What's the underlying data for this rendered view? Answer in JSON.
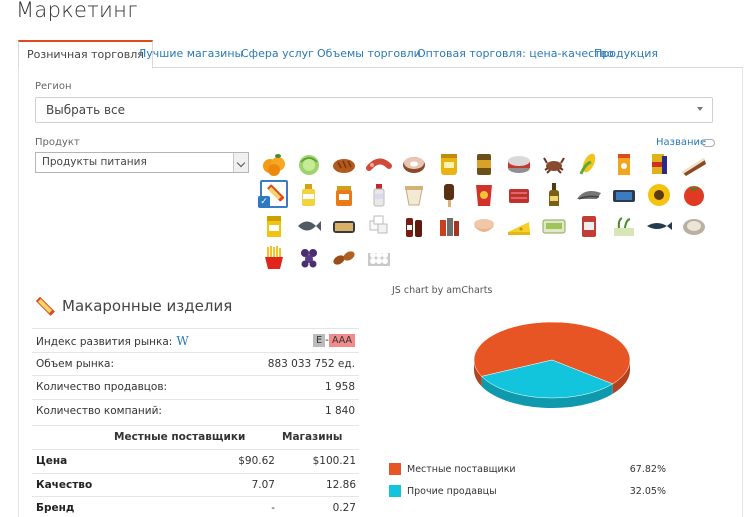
{
  "page": {
    "title": "Маркетинг"
  },
  "tabs": [
    {
      "label": "Розничная торговля",
      "active": true
    },
    {
      "label": "Лучшие магазины"
    },
    {
      "label": "Сфера услуг"
    },
    {
      "label": "Объемы торговли"
    },
    {
      "label": "Оптовая торговля: цена-качество"
    },
    {
      "label": "Продукция"
    }
  ],
  "filters": {
    "region_label": "Регион",
    "region_value": "Выбрать все",
    "product_label": "Продукт",
    "product_value": "Продукты питания",
    "name_toggle": "Название"
  },
  "product_icons": [
    "orange-icon",
    "cabbage-icon",
    "bread-icon",
    "sausage-icon",
    "donut-icon",
    "honey-jar-icon",
    "can-icon",
    "tin-icon",
    "crab-icon",
    "corn-icon",
    "juice-icon",
    "pepper-box-icon",
    "cake-slice-icon",
    "pasta-icon",
    "oil-bottle-icon",
    "jam-jar-icon",
    "milk-bottle-icon",
    "yogurt-icon",
    "ice-cream-icon",
    "chips-icon",
    "meat-icon",
    "wine-bottle-icon",
    "salmon-icon",
    "butter-icon",
    "sunflower-icon",
    "tomato-icon",
    "beer-icon",
    "fish-icon",
    "sardines-icon",
    "sugar-icon",
    "sauce-bottles-icon",
    "spices-icon",
    "pastry-icon",
    "cheese-icon",
    "cream-cheese-icon",
    "can-red-icon",
    "seedlings-icon",
    "dark-fish-icon",
    "oyster-icon",
    "fries-icon",
    "grapes-icon",
    "rolls-icon",
    "eggs-icon"
  ],
  "selected_product": {
    "title": "Макаронные изделия",
    "icon": "pasta-icon",
    "stats": [
      {
        "label": "Индекс развития рынка:",
        "wiki": "W",
        "badge1": "E",
        "sep": "-",
        "badge2": "AAA"
      },
      {
        "label": "Объем рынка:",
        "value": "883 033 752 ед."
      },
      {
        "label": "Количество продавцов:",
        "value": "1 958"
      },
      {
        "label": "Количество компаний:",
        "value": "1 840"
      }
    ],
    "compare_headers": {
      "col1": "Местные поставщики",
      "col2": "Магазины"
    },
    "compare_rows": [
      {
        "name": "Цена",
        "a": "$90.62",
        "b": "$100.21"
      },
      {
        "name": "Качество",
        "a": "7.07",
        "b": "12.86"
      },
      {
        "name": "Бренд",
        "a": "-",
        "b": "0.27"
      }
    ]
  },
  "chart_credit": "JS chart by amCharts",
  "chart_data": {
    "type": "pie",
    "series": [
      {
        "name": "Местные поставщики",
        "value": 67.82,
        "label": "67.82%",
        "color": "#e85525"
      },
      {
        "name": "Прочие продавцы",
        "value": 32.05,
        "label": "32.05%",
        "color": "#12c5dd"
      }
    ]
  }
}
